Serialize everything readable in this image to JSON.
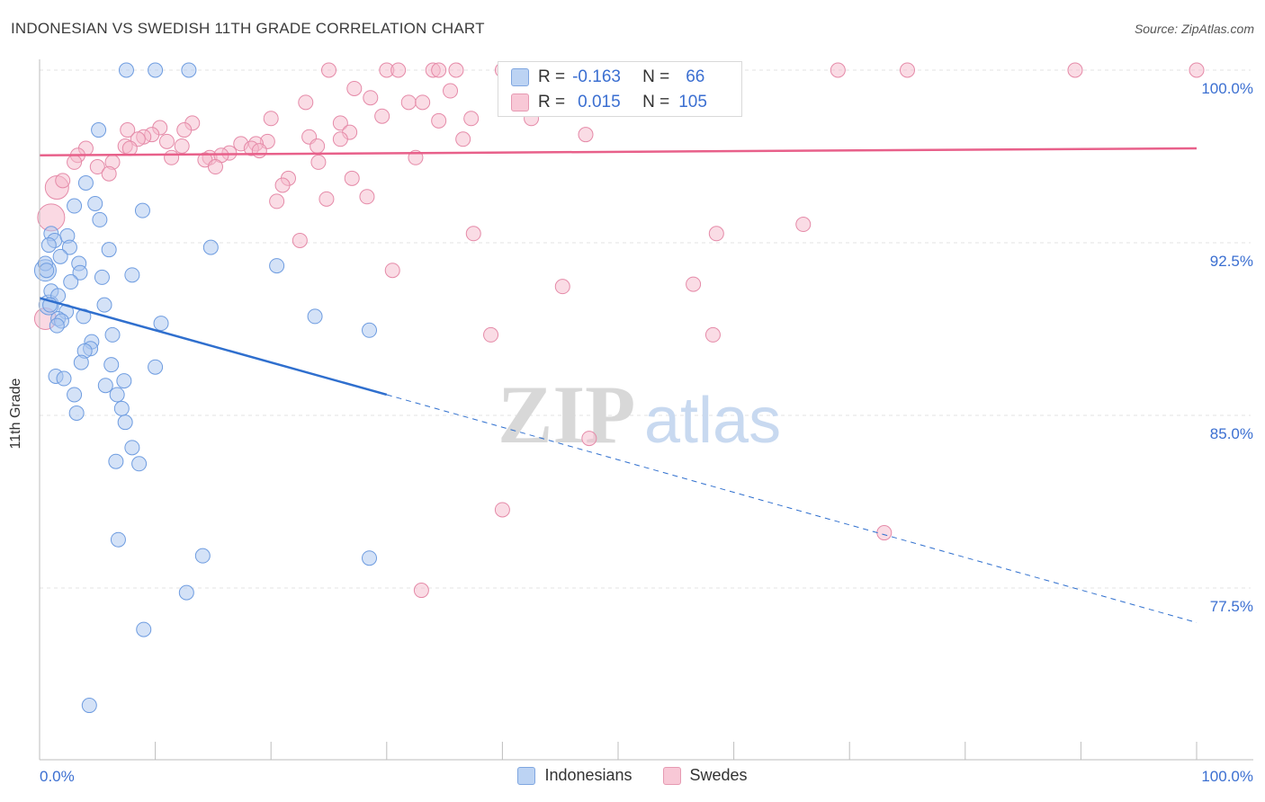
{
  "header": {
    "title": "INDONESIAN VS SWEDISH 11TH GRADE CORRELATION CHART",
    "source": "Source: ZipAtlas.com"
  },
  "stats_legend": {
    "blue": {
      "r_label": "R =",
      "r_value": "-0.163",
      "n_label": "N =",
      "n_value": "66"
    },
    "pink": {
      "r_label": "R =",
      "r_value": "0.015",
      "n_label": "N =",
      "n_value": "105"
    }
  },
  "colors": {
    "blue_fill": "#a9c6f0",
    "blue_stroke": "#6e9ce0",
    "blue_line": "#2f6fce",
    "pink_fill": "#f6b9cc",
    "pink_stroke": "#e58aa8",
    "pink_line": "#e8608a",
    "grid": "#e3e3e3",
    "tick_label": "#3b6fd1"
  },
  "chart_data": {
    "type": "scatter",
    "title": "INDONESIAN VS SWEDISH 11TH GRADE CORRELATION CHART",
    "xlabel": "",
    "ylabel": "11th Grade",
    "xlim": [
      0,
      100
    ],
    "ylim": [
      71.0,
      100.6
    ],
    "x_tick_labels": [
      "0.0%",
      "100.0%"
    ],
    "y_ticks": [
      100.0,
      92.5,
      85.0,
      77.5
    ],
    "y_tick_labels": [
      "100.0%",
      "92.5%",
      "85.0%",
      "77.5%"
    ],
    "grid": true,
    "legend_position": "bottom-center",
    "watermark": "ZIPatlas",
    "series": [
      {
        "name": "Indonesians",
        "r": -0.163,
        "n": 66,
        "trend": {
          "x0": 0,
          "y0": 90.1,
          "x1": 30,
          "y1": 85.9,
          "dashed_to_x": 100,
          "dashed_to_y": 76.0
        },
        "points": [
          [
            7.5,
            100
          ],
          [
            10.0,
            100
          ],
          [
            12.9,
            100
          ],
          [
            5.1,
            97.4
          ],
          [
            4.0,
            95.1
          ],
          [
            4.8,
            94.2
          ],
          [
            3.0,
            94.1
          ],
          [
            8.9,
            93.9
          ],
          [
            5.2,
            93.5
          ],
          [
            1.0,
            92.9
          ],
          [
            1.3,
            92.6
          ],
          [
            2.4,
            92.8
          ],
          [
            0.8,
            92.4
          ],
          [
            2.6,
            92.3
          ],
          [
            6.0,
            92.2
          ],
          [
            14.8,
            92.3
          ],
          [
            1.8,
            91.9
          ],
          [
            0.5,
            91.6
          ],
          [
            3.4,
            91.6
          ],
          [
            20.5,
            91.5
          ],
          [
            0.6,
            91.3
          ],
          [
            3.5,
            91.2
          ],
          [
            8.0,
            91.1
          ],
          [
            5.4,
            91.0
          ],
          [
            2.7,
            90.8
          ],
          [
            1.0,
            90.4
          ],
          [
            1.6,
            90.2
          ],
          [
            0.9,
            89.8
          ],
          [
            5.6,
            89.8
          ],
          [
            2.3,
            89.5
          ],
          [
            1.6,
            89.2
          ],
          [
            1.9,
            89.1
          ],
          [
            1.5,
            88.9
          ],
          [
            3.8,
            89.3
          ],
          [
            10.5,
            89.0
          ],
          [
            23.8,
            89.3
          ],
          [
            28.5,
            88.7
          ],
          [
            6.3,
            88.5
          ],
          [
            4.5,
            88.2
          ],
          [
            4.4,
            87.9
          ],
          [
            3.9,
            87.8
          ],
          [
            3.6,
            87.3
          ],
          [
            6.2,
            87.2
          ],
          [
            10.0,
            87.1
          ],
          [
            1.4,
            86.7
          ],
          [
            2.1,
            86.6
          ],
          [
            7.3,
            86.5
          ],
          [
            5.7,
            86.3
          ],
          [
            3.0,
            85.9
          ],
          [
            6.7,
            85.9
          ],
          [
            7.1,
            85.3
          ],
          [
            3.2,
            85.1
          ],
          [
            7.4,
            84.7
          ],
          [
            8.0,
            83.6
          ],
          [
            6.6,
            83.0
          ],
          [
            8.6,
            82.9
          ],
          [
            6.8,
            79.6
          ],
          [
            14.1,
            78.9
          ],
          [
            28.5,
            78.8
          ],
          [
            12.7,
            77.3
          ],
          [
            9.0,
            75.7
          ],
          [
            4.3,
            72.4
          ]
        ],
        "big_points": [
          [
            0.5,
            91.3,
            12
          ],
          [
            0.8,
            89.8,
            11
          ]
        ]
      },
      {
        "name": "Swedes",
        "r": 0.015,
        "n": 105,
        "trend": {
          "x0": 0,
          "y0": 96.3,
          "x1": 100,
          "y1": 96.6
        },
        "points": [
          [
            25.0,
            100
          ],
          [
            30.0,
            100
          ],
          [
            31.0,
            100
          ],
          [
            34.0,
            100
          ],
          [
            34.5,
            100
          ],
          [
            36.0,
            100
          ],
          [
            40.0,
            100
          ],
          [
            41.0,
            100
          ],
          [
            53.0,
            100
          ],
          [
            60.0,
            100
          ],
          [
            69.0,
            100
          ],
          [
            75.0,
            100
          ],
          [
            89.5,
            100
          ],
          [
            100.0,
            100
          ],
          [
            44.0,
            99.1
          ],
          [
            42.5,
            99.3
          ],
          [
            35.5,
            99.1
          ],
          [
            27.2,
            99.2
          ],
          [
            28.6,
            98.8
          ],
          [
            23.0,
            98.6
          ],
          [
            31.9,
            98.6
          ],
          [
            33.1,
            98.6
          ],
          [
            40.6,
            98.4
          ],
          [
            29.6,
            98.0
          ],
          [
            20.0,
            97.9
          ],
          [
            34.5,
            97.8
          ],
          [
            37.3,
            97.9
          ],
          [
            42.5,
            97.9
          ],
          [
            26.0,
            97.7
          ],
          [
            13.2,
            97.7
          ],
          [
            10.4,
            97.5
          ],
          [
            12.5,
            97.4
          ],
          [
            7.6,
            97.4
          ],
          [
            9.7,
            97.2
          ],
          [
            26.8,
            97.3
          ],
          [
            47.2,
            97.2
          ],
          [
            9.0,
            97.1
          ],
          [
            8.5,
            97.0
          ],
          [
            23.3,
            97.1
          ],
          [
            26.0,
            97.0
          ],
          [
            36.6,
            97.0
          ],
          [
            11.0,
            96.9
          ],
          [
            19.7,
            96.9
          ],
          [
            12.3,
            96.7
          ],
          [
            7.4,
            96.7
          ],
          [
            24.0,
            96.7
          ],
          [
            4.0,
            96.6
          ],
          [
            7.8,
            96.6
          ],
          [
            17.4,
            96.8
          ],
          [
            18.7,
            96.8
          ],
          [
            18.3,
            96.6
          ],
          [
            3.3,
            96.3
          ],
          [
            14.7,
            96.2
          ],
          [
            16.4,
            96.4
          ],
          [
            19.0,
            96.5
          ],
          [
            15.7,
            96.3
          ],
          [
            14.3,
            96.1
          ],
          [
            11.4,
            96.2
          ],
          [
            32.5,
            96.2
          ],
          [
            3.0,
            96.0
          ],
          [
            6.3,
            96.0
          ],
          [
            24.1,
            96.0
          ],
          [
            5.0,
            95.8
          ],
          [
            15.2,
            95.8
          ],
          [
            6.0,
            95.5
          ],
          [
            2.0,
            95.2
          ],
          [
            27.0,
            95.3
          ],
          [
            21.5,
            95.3
          ],
          [
            21.0,
            95.0
          ],
          [
            28.3,
            94.5
          ],
          [
            24.8,
            94.4
          ],
          [
            20.5,
            94.3
          ],
          [
            66.0,
            93.3
          ],
          [
            37.5,
            92.9
          ],
          [
            58.5,
            92.9
          ],
          [
            22.5,
            92.6
          ],
          [
            30.5,
            91.3
          ],
          [
            56.5,
            90.7
          ],
          [
            45.2,
            90.6
          ],
          [
            39.0,
            88.5
          ],
          [
            58.2,
            88.5
          ],
          [
            47.5,
            84.0
          ],
          [
            40.0,
            80.9
          ],
          [
            73.0,
            79.9
          ],
          [
            33.0,
            77.4
          ]
        ],
        "big_points": [
          [
            1.0,
            93.6,
            15
          ],
          [
            1.5,
            94.9,
            13
          ],
          [
            0.5,
            89.2,
            12
          ]
        ]
      }
    ]
  }
}
